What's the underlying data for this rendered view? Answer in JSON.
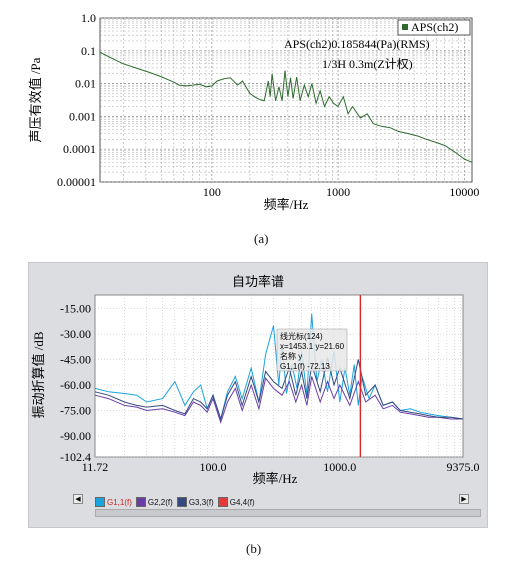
{
  "captions": {
    "a": "(a)",
    "b": "(b)"
  },
  "chart_data": [
    {
      "type": "line",
      "title": "",
      "xlabel": "频率/Hz",
      "ylabel": "声压有效值 /Pa",
      "xscale": "log",
      "yscale": "log",
      "xlim": [
        13,
        11500
      ],
      "ylim": [
        1e-05,
        1.0
      ],
      "xticks": [
        100,
        1000,
        10000
      ],
      "xtick_labels": [
        "100",
        "1000",
        "10000"
      ],
      "yticks": [
        1.0,
        0.1,
        0.01,
        0.001,
        0.0001,
        1e-05
      ],
      "ytick_labels": [
        "1.0",
        "0.1",
        "0.01",
        "0.001",
        "0.0001",
        "0.00001"
      ],
      "grid": true,
      "legend": {
        "position": "top-right",
        "entries": [
          "APS(ch2)"
        ]
      },
      "annotations": [
        "APS(ch2)0.185844(Pa)(RMS)",
        "1/3H  0.3m(Z计权)"
      ],
      "series": [
        {
          "name": "APS(ch2)",
          "color": "#2f6b2f",
          "x": [
            13,
            16,
            20,
            25,
            32,
            40,
            50,
            55,
            63,
            80,
            90,
            100,
            110,
            125,
            140,
            160,
            175,
            200,
            230,
            260,
            280,
            290,
            300,
            320,
            340,
            360,
            380,
            400,
            420,
            440,
            470,
            500,
            540,
            580,
            620,
            670,
            720,
            780,
            850,
            920,
            1000,
            1100,
            1200,
            1300,
            1500,
            1700,
            1900,
            2200,
            2600,
            3000,
            3600,
            4300,
            5000,
            6000,
            7000,
            8500,
            10000,
            11500
          ],
          "y": [
            0.09,
            0.06,
            0.04,
            0.03,
            0.022,
            0.016,
            0.011,
            0.009,
            0.0085,
            0.0095,
            0.008,
            0.0085,
            0.012,
            0.014,
            0.015,
            0.009,
            0.012,
            0.005,
            0.0035,
            0.003,
            0.012,
            0.004,
            0.02,
            0.003,
            0.008,
            0.003,
            0.025,
            0.004,
            0.015,
            0.0035,
            0.016,
            0.003,
            0.009,
            0.004,
            0.01,
            0.0025,
            0.006,
            0.002,
            0.004,
            0.0025,
            0.002,
            0.004,
            0.0012,
            0.002,
            0.0009,
            0.0012,
            0.0006,
            0.0005,
            0.00045,
            0.00035,
            0.0003,
            0.00025,
            0.0002,
            0.00016,
            0.00013,
            8e-05,
            5e-05,
            4e-05
          ]
        }
      ]
    },
    {
      "type": "line",
      "title": "自功率谱",
      "xlabel": "频率/Hz",
      "ylabel": "振动折算值 /dB",
      "xscale": "log",
      "xlim": [
        11.72,
        9375.0
      ],
      "ylim": [
        -102.4,
        -7.0
      ],
      "xtick_labels": [
        "11.72",
        "100.0",
        "1000.0",
        "9375.0"
      ],
      "yticks": [
        -15.0,
        -30.0,
        -45.0,
        -60.0,
        -75.0,
        -90.0,
        -102.4
      ],
      "ytick_labels": [
        "-15.00",
        "-30.00",
        "-45.00",
        "-60.00",
        "-75.00",
        "-90.00",
        "-102.4"
      ],
      "grid": true,
      "cursor": {
        "x": 1453.1,
        "color": "#d9262c",
        "box_lines": [
          "线光标(124)",
          "x=1453.1 y=21.60",
          "名称  y",
          "G1,1(f)   -72.13"
        ]
      },
      "legend": {
        "position": "bottom",
        "entries": [
          "G1,1(f)",
          "G2,2(f)",
          "G3,3(f)",
          "G4,4(f)"
        ],
        "colors": [
          "#1aa3de",
          "#6a3da6",
          "#34497e",
          "#e53a3a"
        ]
      },
      "series": [
        {
          "name": "G1,1(f)",
          "color": "#1aa3de",
          "x": [
            11.72,
            15,
            20,
            25,
            30,
            40,
            50,
            60,
            70,
            80,
            90,
            100,
            115,
            130,
            150,
            170,
            200,
            230,
            260,
            300,
            330,
            350,
            380,
            420,
            460,
            500,
            550,
            600,
            660,
            720,
            800,
            900,
            1000,
            1100,
            1200,
            1300,
            1400,
            1500,
            1700,
            1900,
            2200,
            2600,
            3000,
            3600,
            4300,
            5000,
            6000,
            7500,
            9375
          ],
          "y": [
            -62,
            -64,
            -65,
            -66,
            -70,
            -68,
            -58,
            -72,
            -64,
            -60,
            -74,
            -66,
            -80,
            -64,
            -55,
            -68,
            -50,
            -70,
            -42,
            -25,
            -60,
            -36,
            -65,
            -48,
            -62,
            -40,
            -66,
            -18,
            -58,
            -45,
            -64,
            -40,
            -70,
            -50,
            -66,
            -48,
            -72,
            -55,
            -68,
            -60,
            -72,
            -70,
            -75,
            -74,
            -76,
            -77,
            -78,
            -79,
            -80
          ]
        },
        {
          "name": "G2,2(f)",
          "color": "#6a3da6",
          "x": [
            11.72,
            15,
            20,
            25,
            30,
            40,
            50,
            60,
            70,
            80,
            90,
            100,
            115,
            130,
            150,
            170,
            200,
            230,
            260,
            300,
            350,
            400,
            450,
            500,
            550,
            600,
            700,
            800,
            900,
            1000,
            1200,
            1400,
            1600,
            1900,
            2200,
            2600,
            3000,
            3600,
            4300,
            5000,
            6000,
            7500,
            9375
          ],
          "y": [
            -66,
            -68,
            -72,
            -73,
            -75,
            -74,
            -76,
            -78,
            -70,
            -72,
            -76,
            -68,
            -82,
            -70,
            -62,
            -75,
            -60,
            -74,
            -56,
            -62,
            -66,
            -58,
            -70,
            -60,
            -72,
            -55,
            -70,
            -58,
            -68,
            -60,
            -72,
            -58,
            -70,
            -66,
            -74,
            -72,
            -76,
            -77,
            -78,
            -79,
            -79,
            -80,
            -80
          ]
        },
        {
          "name": "G3,3(f)",
          "color": "#34497e",
          "x": [
            11.72,
            15,
            20,
            25,
            30,
            40,
            50,
            60,
            70,
            80,
            90,
            100,
            115,
            130,
            150,
            170,
            200,
            230,
            260,
            300,
            350,
            400,
            450,
            500,
            550,
            600,
            700,
            800,
            900,
            1000,
            1200,
            1400,
            1600,
            1900,
            2200,
            2600,
            3000,
            3600,
            4300,
            5000,
            6000,
            7500,
            9375
          ],
          "y": [
            -64,
            -66,
            -70,
            -72,
            -73,
            -72,
            -75,
            -77,
            -68,
            -70,
            -74,
            -66,
            -80,
            -66,
            -58,
            -72,
            -55,
            -70,
            -52,
            -58,
            -62,
            -50,
            -66,
            -52,
            -68,
            -48,
            -64,
            -44,
            -60,
            -50,
            -68,
            -45,
            -66,
            -60,
            -72,
            -70,
            -75,
            -76,
            -77,
            -78,
            -79,
            -79,
            -80
          ]
        },
        {
          "name": "G4,4(f)",
          "color": "#e53a3a",
          "x": [],
          "y": []
        }
      ]
    }
  ]
}
